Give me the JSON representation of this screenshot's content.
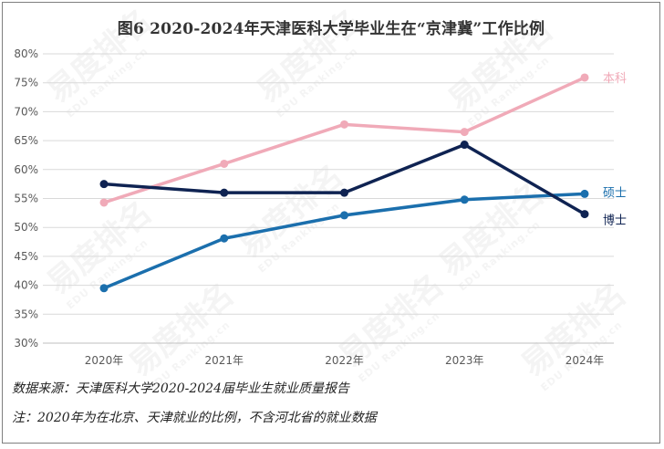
{
  "title": "图6 2020-2024年天津医科大学毕业生在“京津冀”工作比例",
  "watermark_text": "易度排名",
  "watermark_sub": "EDU Ranking.cn",
  "colors": {
    "undergrad": "#f0aab8",
    "master": "#1b6fad",
    "doctor": "#0f2352",
    "grid": "#d9d9d9",
    "axis": "#bfbfbf"
  },
  "chart_data": {
    "type": "line",
    "title": "图6 2020-2024年天津医科大学毕业生在“京津冀”工作比例",
    "xlabel": "",
    "ylabel": "",
    "categories": [
      "2020年",
      "2021年",
      "2022年",
      "2023年",
      "2024年"
    ],
    "ylim": [
      30,
      80
    ],
    "yticks": [
      "30%",
      "35%",
      "40%",
      "45%",
      "50%",
      "55%",
      "60%",
      "65%",
      "70%",
      "75%",
      "80%"
    ],
    "grid": true,
    "series": [
      {
        "name": "本科",
        "values": [
          54.3,
          61.0,
          67.8,
          66.5,
          75.9
        ]
      },
      {
        "name": "硕士",
        "values": [
          39.5,
          48.1,
          52.1,
          54.8,
          55.8
        ]
      },
      {
        "name": "博士",
        "values": [
          57.5,
          56.0,
          56.0,
          64.3,
          52.3
        ]
      }
    ]
  },
  "footer": {
    "source": "数据来源：天津医科大学2020-2024届毕业生就业质量报告",
    "note": "注：2020年为在北京、天津就业的比例，不含河北省的就业数据"
  }
}
